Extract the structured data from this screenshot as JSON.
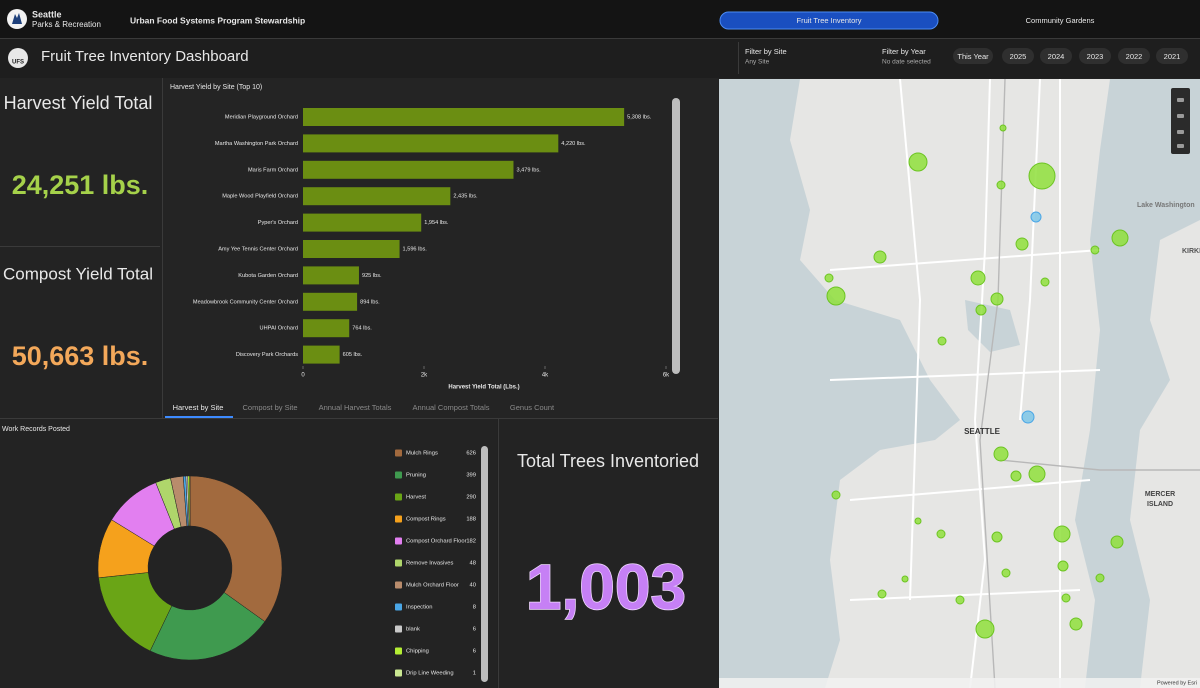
{
  "header": {
    "org": "Seattle",
    "org_sub": "Parks & Recreation",
    "program": "Urban Food Systems Program Stewardship",
    "tabs": [
      "Fruit Tree Inventory",
      "Community Gardens"
    ]
  },
  "toolbar": {
    "logo": "UFS",
    "title": "Fruit Tree Inventory Dashboard",
    "site_filter": {
      "label": "Filter by Site",
      "value": "Any Site"
    },
    "year_filter": {
      "label": "Filter by Year",
      "value": "No date selected"
    },
    "year_buttons": [
      "This Year",
      "2025",
      "2024",
      "2023",
      "2022",
      "2021"
    ]
  },
  "indicators": {
    "harvest": {
      "title": "Harvest Yield Total",
      "value": "24,251 lbs."
    },
    "compost": {
      "title": "Compost Yield Total",
      "value": "50,663 lbs."
    },
    "trees": {
      "title": "Total Trees Inventoried",
      "value": "1,003"
    }
  },
  "chart_data": [
    {
      "type": "bar",
      "orientation": "horizontal",
      "title": "Harvest Yield by Site (Top 10)",
      "categories": [
        "Meridian Playground Orchard",
        "Martha Washington Park Orchard",
        "Maris Farm Orchard",
        "Maple Wood Playfield Orchard",
        "Pyper's Orchard",
        "Amy Yee Tennis Center Orchard",
        "Kubota Garden Orchard",
        "Meadowbrook Community Center Orchard",
        "UHPAI Orchard",
        "Discovery Park Orchards"
      ],
      "values": [
        5308,
        4220,
        3479,
        2435,
        1954,
        1596,
        925,
        894,
        764,
        605
      ],
      "value_labels": [
        "5,308 lbs.",
        "4,220 lbs.",
        "3,479 lbs.",
        "2,435 lbs.",
        "1,954 lbs.",
        "1,596 lbs.",
        "925 lbs.",
        "894 lbs.",
        "764 lbs.",
        "605 lbs."
      ],
      "color": "#6b8e12",
      "xlim": [
        0,
        6000
      ],
      "xticks": [
        0,
        {
          "value": 2000,
          "label": "2k"
        },
        {
          "value": 4000,
          "label": "4k"
        },
        {
          "value": 6000,
          "label": "6k"
        }
      ],
      "x_label": "Harvest Yield Total (Lbs.)"
    },
    {
      "type": "pie",
      "donut": true,
      "title": "Work Records Posted",
      "categories": [
        "Mulch Rings",
        "Pruning",
        "Harvest",
        "Compost Rings",
        "Compost Orchard Floor",
        "Remove Invasives",
        "Mulch Orchard Floor",
        "Inspection",
        "blank",
        "Chipping",
        "Drip Line Weeding"
      ],
      "values": [
        626,
        399,
        290,
        188,
        182,
        48,
        40,
        8,
        6,
        6,
        1
      ],
      "colors": [
        "#a26a3e",
        "#3f9a4f",
        "#6aa516",
        "#f5a11c",
        "#e27ff0",
        "#afd66b",
        "#b98c6c",
        "#4aa6e6",
        "#c9c9c9",
        "#b4ee34",
        "#cbe892"
      ]
    }
  ],
  "chart_tabs": [
    "Harvest by Site",
    "Compost by Site",
    "Annual Harvest Totals",
    "Annual Compost Totals",
    "Genus Count"
  ],
  "map": {
    "labels": [
      "Lake Washington",
      "KIRKLAND",
      "SEATTLE",
      "MERCER",
      "ISLAND"
    ],
    "attribution": "Powered by Esri"
  }
}
